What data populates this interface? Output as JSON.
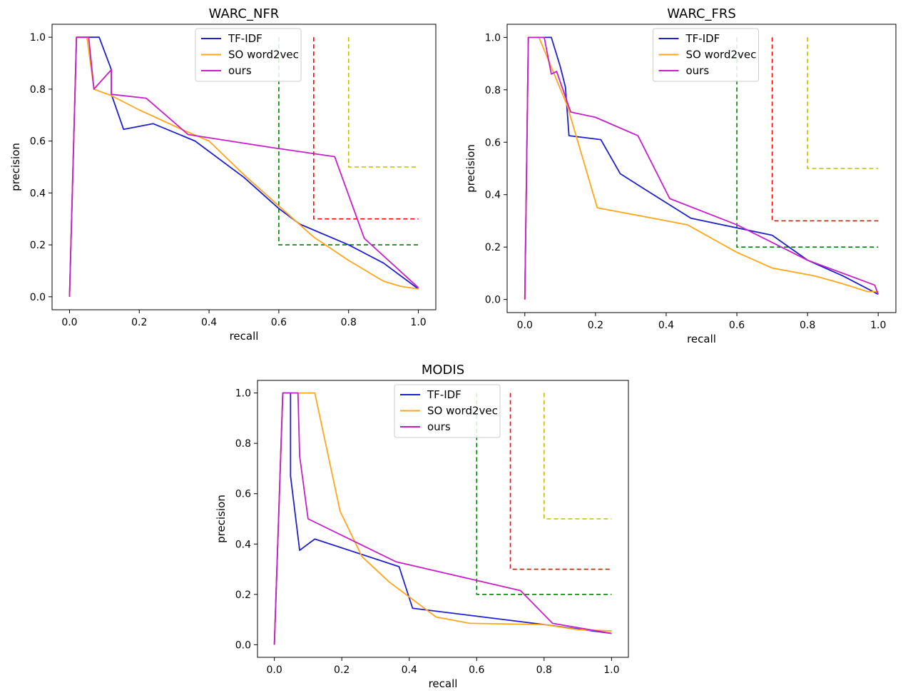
{
  "colors": {
    "TF-IDF": "#1f1fcc",
    "SO word2vec": "#ffa61a",
    "ours": "#c71fc7",
    "thr_green": "#008000",
    "thr_red": "#ff0000",
    "thr_yellow": "#bfbf00"
  },
  "chart_data": [
    {
      "type": "line",
      "title": "WARC_NFR",
      "xlabel": "recall",
      "ylabel": "precision",
      "xlim": [
        -0.05,
        1.05
      ],
      "ylim": [
        -0.05,
        1.05
      ],
      "xticks": [
        0.0,
        0.2,
        0.4,
        0.6,
        0.8,
        1.0
      ],
      "yticks": [
        0.0,
        0.2,
        0.4,
        0.6,
        0.8,
        1.0
      ],
      "legend_position": "top-center",
      "series": [
        {
          "name": "TF-IDF",
          "x": [
            0.0,
            0.02,
            0.05,
            0.085,
            0.12,
            0.12,
            0.155,
            0.24,
            0.36,
            0.5,
            0.6,
            0.66,
            0.8,
            0.9,
            1.0
          ],
          "y": [
            0.0,
            1.0,
            1.0,
            1.0,
            0.875,
            0.78,
            0.645,
            0.667,
            0.6,
            0.46,
            0.34,
            0.28,
            0.2,
            0.13,
            0.03
          ]
        },
        {
          "name": "SO word2vec",
          "x": [
            0.0,
            0.02,
            0.05,
            0.07,
            0.12,
            0.2,
            0.33,
            0.4,
            0.5,
            0.6,
            0.7,
            0.8,
            0.9,
            0.95,
            1.0
          ],
          "y": [
            0.0,
            1.0,
            1.0,
            0.8,
            0.775,
            0.72,
            0.64,
            0.6,
            0.47,
            0.35,
            0.23,
            0.14,
            0.06,
            0.04,
            0.03
          ]
        },
        {
          "name": "ours",
          "x": [
            0.0,
            0.02,
            0.055,
            0.07,
            0.12,
            0.12,
            0.22,
            0.34,
            0.58,
            0.76,
            0.845,
            1.0
          ],
          "y": [
            0.0,
            1.0,
            1.0,
            0.8,
            0.875,
            0.78,
            0.765,
            0.625,
            0.575,
            0.54,
            0.225,
            0.035
          ]
        }
      ],
      "thresholds": [
        {
          "name": "green",
          "x": 0.6,
          "y": 0.2
        },
        {
          "name": "red",
          "x": 0.7,
          "y": 0.3
        },
        {
          "name": "yellow",
          "x": 0.8,
          "y": 0.5
        }
      ]
    },
    {
      "type": "line",
      "title": "WARC_FRS",
      "xlabel": "recall",
      "ylabel": "precision",
      "xlim": [
        -0.05,
        1.05
      ],
      "ylim": [
        -0.05,
        1.05
      ],
      "xticks": [
        0.0,
        0.2,
        0.4,
        0.6,
        0.8,
        1.0
      ],
      "yticks": [
        0.0,
        0.2,
        0.4,
        0.6,
        0.8,
        1.0
      ],
      "legend_position": "top-center",
      "series": [
        {
          "name": "TF-IDF",
          "x": [
            0.0,
            0.01,
            0.075,
            0.1,
            0.115,
            0.125,
            0.215,
            0.27,
            0.34,
            0.47,
            0.7,
            0.8,
            0.9,
            1.0
          ],
          "y": [
            0.0,
            1.0,
            1.0,
            0.89,
            0.81,
            0.625,
            0.61,
            0.48,
            0.42,
            0.31,
            0.245,
            0.15,
            0.09,
            0.02
          ]
        },
        {
          "name": "SO word2vec",
          "x": [
            0.0,
            0.01,
            0.04,
            0.12,
            0.205,
            0.46,
            0.6,
            0.7,
            0.82,
            0.9,
            0.97,
            1.0
          ],
          "y": [
            0.0,
            1.0,
            1.0,
            0.74,
            0.35,
            0.285,
            0.18,
            0.12,
            0.09,
            0.06,
            0.03,
            0.03
          ]
        },
        {
          "name": "ours",
          "x": [
            0.0,
            0.01,
            0.055,
            0.075,
            0.09,
            0.13,
            0.2,
            0.32,
            0.41,
            0.6,
            0.8,
            0.99,
            1.0
          ],
          "y": [
            0.0,
            1.0,
            1.0,
            0.86,
            0.87,
            0.715,
            0.695,
            0.625,
            0.385,
            0.285,
            0.15,
            0.055,
            0.02
          ]
        }
      ],
      "thresholds": [
        {
          "name": "green",
          "x": 0.6,
          "y": 0.2
        },
        {
          "name": "red",
          "x": 0.7,
          "y": 0.3
        },
        {
          "name": "yellow",
          "x": 0.8,
          "y": 0.5
        }
      ]
    },
    {
      "type": "line",
      "title": "MODIS",
      "xlabel": "recall",
      "ylabel": "precision",
      "xlim": [
        -0.05,
        1.05
      ],
      "ylim": [
        -0.05,
        1.05
      ],
      "xticks": [
        0.0,
        0.2,
        0.4,
        0.6,
        0.8,
        1.0
      ],
      "yticks": [
        0.0,
        0.2,
        0.4,
        0.6,
        0.8,
        1.0
      ],
      "legend_position": "top-center",
      "series": [
        {
          "name": "TF-IDF",
          "x": [
            0.0,
            0.025,
            0.048,
            0.048,
            0.075,
            0.12,
            0.37,
            0.41,
            0.8,
            1.0
          ],
          "y": [
            0.0,
            1.0,
            1.0,
            0.67,
            0.375,
            0.42,
            0.31,
            0.145,
            0.08,
            0.045
          ]
        },
        {
          "name": "SO word2vec",
          "x": [
            0.0,
            0.025,
            0.12,
            0.195,
            0.26,
            0.34,
            0.4,
            0.48,
            0.58,
            0.8,
            0.9,
            1.0
          ],
          "y": [
            0.0,
            1.0,
            1.0,
            0.53,
            0.35,
            0.25,
            0.19,
            0.11,
            0.085,
            0.08,
            0.06,
            0.055
          ]
        },
        {
          "name": "ours",
          "x": [
            0.0,
            0.025,
            0.07,
            0.075,
            0.1,
            0.36,
            0.73,
            0.825,
            1.0
          ],
          "y": [
            0.0,
            1.0,
            1.0,
            0.75,
            0.5,
            0.33,
            0.215,
            0.085,
            0.045
          ]
        }
      ],
      "thresholds": [
        {
          "name": "green",
          "x": 0.6,
          "y": 0.2
        },
        {
          "name": "red",
          "x": 0.7,
          "y": 0.3
        },
        {
          "name": "yellow",
          "x": 0.8,
          "y": 0.5
        }
      ]
    }
  ]
}
